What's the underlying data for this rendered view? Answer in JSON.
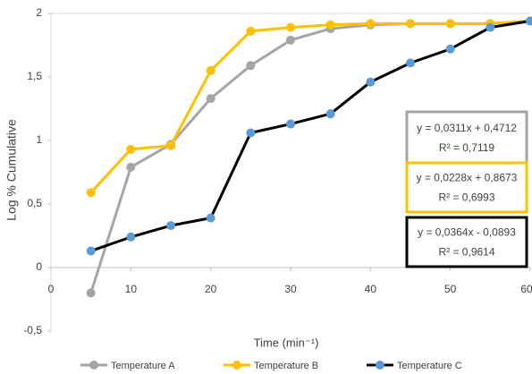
{
  "chart_data": {
    "type": "line",
    "x_label": "Time (min⁻¹)",
    "y_label": "Log % Cumulative",
    "x": [
      5,
      10,
      15,
      20,
      25,
      30,
      35,
      40,
      45,
      50,
      55,
      60
    ],
    "series": [
      {
        "name": "Temperature A",
        "color": "#a5a5a5",
        "marker_color": "#a5a5a5",
        "values": [
          -0.2,
          0.79,
          0.97,
          1.33,
          1.59,
          1.79,
          1.88,
          1.91,
          1.92,
          1.92,
          1.92,
          1.94
        ]
      },
      {
        "name": "Temperature B",
        "color": "#ffc000",
        "marker_color": "#ffc000",
        "values": [
          0.59,
          0.93,
          0.96,
          1.55,
          1.86,
          1.89,
          1.91,
          1.92,
          1.92,
          1.92,
          1.92,
          1.94
        ]
      },
      {
        "name": "Temperature C",
        "color": "#000000",
        "marker_color": "#5b9bd5",
        "values": [
          0.13,
          0.24,
          0.33,
          0.39,
          1.06,
          1.13,
          1.21,
          1.46,
          1.61,
          1.72,
          1.89,
          1.94
        ]
      }
    ],
    "xlim": [
      0,
      60
    ],
    "xticks": [
      0,
      10,
      20,
      30,
      40,
      50,
      60
    ],
    "ylim": [
      -0.5,
      2
    ],
    "yticks": [
      {
        "value": -0.5,
        "label": "-0,5"
      },
      0,
      {
        "value": 0.5,
        "label": "0,5"
      },
      1,
      {
        "value": 1.5,
        "label": "1,5"
      },
      2
    ],
    "annotations": [
      {
        "equation": "y = 0,0311x + 0,4712",
        "r2": "R² = 0,7119",
        "color": "#a5a5a5"
      },
      {
        "equation": "y = 0,0228x + 0,8673",
        "r2": "R² = 0,6993",
        "color": "#ffc000"
      },
      {
        "equation": "y = 0,0364x - 0,0893",
        "r2": "R² = 0,9614",
        "color": "#000000"
      }
    ],
    "legend": "bottom"
  }
}
